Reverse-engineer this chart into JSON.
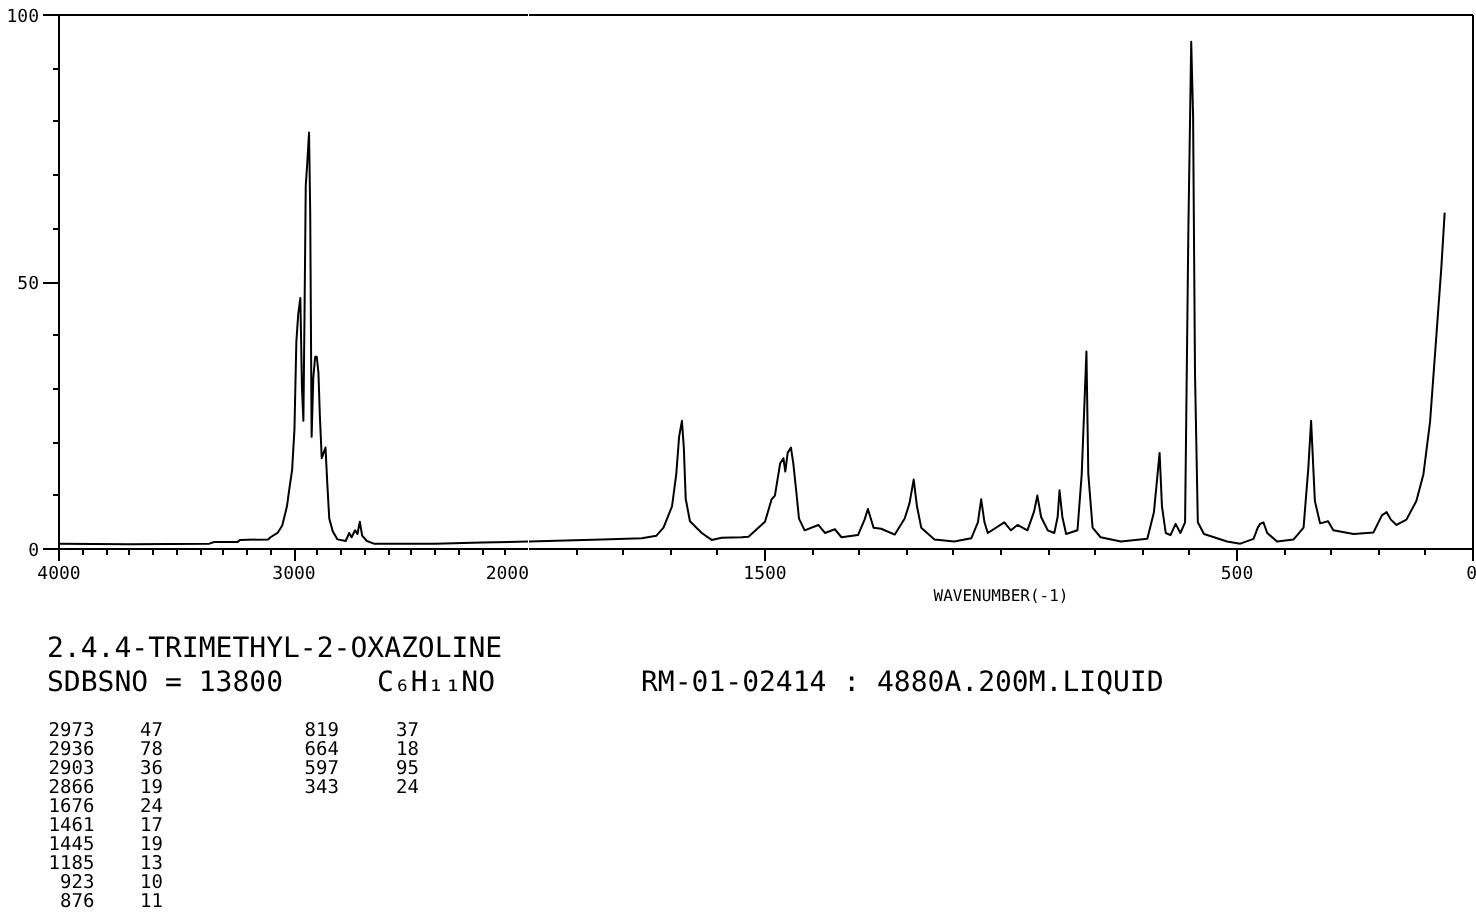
{
  "chart_data": [
    {
      "type": "line",
      "title": "2.4.4-TRIMETHYL-2-OXAZOLINE",
      "annotations": [
        "SDBSNO = 13800",
        "C₆H₁₁NO",
        "RM-01-02414 : 4880A.200M.LIQUID",
        "2973    47",
        "2936    78",
        "2903    36",
        "2866    19",
        "1676    24",
        "1461    17",
        "1445    19",
        "1185    13",
        "923    10",
        "876    11",
        "819     37",
        "664     18",
        "597     95",
        "343     24"
      ],
      "color": "#000000",
      "x": [
        4000,
        3700,
        3360,
        3340,
        3240,
        3230,
        3110,
        3100,
        3070,
        3050,
        3030,
        3020,
        3008,
        2998,
        2990,
        2982,
        2973,
        2966,
        2960,
        2955,
        2950,
        2944,
        2936,
        2931,
        2925,
        2918,
        2910,
        2903,
        2896,
        2890,
        2882,
        2874,
        2866,
        2858,
        2850,
        2835,
        2815,
        2780,
        2765,
        2755,
        2740,
        2730,
        2720,
        2710,
        2690,
        2660,
        2400,
        2200,
        2000
      ],
      "values": [
        1.0,
        0.9,
        1.0,
        1.3,
        1.3,
        1.7,
        1.8,
        2.2,
        3.0,
        4.4,
        8.0,
        11.2,
        14.8,
        22.5,
        38.8,
        44,
        47,
        30,
        24,
        45,
        68,
        72,
        78,
        63,
        21,
        32,
        36,
        36,
        33,
        25,
        17,
        18,
        19,
        12,
        5.7,
        3.3,
        1.8,
        1.5,
        3.0,
        2.2,
        3.5,
        2.8,
        5.1,
        2.5,
        1.5,
        1.0,
        1.0,
        1.2,
        1.4
      ],
      "xlim": [
        4000,
        2000
      ],
      "xticks": [
        4000,
        {
          "value": 3900,
          "label": null
        },
        {
          "value": 3800,
          "label": null
        },
        {
          "value": 3700,
          "label": null
        },
        {
          "value": 3600,
          "label": null
        },
        {
          "value": 3500,
          "label": null
        },
        {
          "value": 3400,
          "label": null
        },
        {
          "value": 3300,
          "label": null
        },
        {
          "value": 3200,
          "label": null
        },
        {
          "value": 3100,
          "label": null
        },
        3000,
        {
          "value": 2900,
          "label": null
        },
        {
          "value": 2800,
          "label": null
        },
        {
          "value": 2700,
          "label": null
        },
        {
          "value": 2600,
          "label": null
        },
        {
          "value": 2500,
          "label": null
        },
        {
          "value": 2400,
          "label": null
        },
        {
          "value": 2300,
          "label": null
        },
        {
          "value": 2200,
          "label": null
        },
        {
          "value": 2100,
          "label": null
        },
        2000
      ],
      "ylim": [
        0,
        100
      ],
      "yticks": [
        0,
        {
          "value": 10,
          "label": null
        },
        {
          "value": 20,
          "label": null
        },
        {
          "value": 30,
          "label": null
        },
        {
          "value": 40,
          "label": null
        },
        50,
        {
          "value": 60,
          "label": null
        },
        {
          "value": 70,
          "label": null
        },
        {
          "value": 80,
          "label": null
        },
        {
          "value": 90,
          "label": null
        },
        100
      ]
    },
    {
      "type": "line",
      "xlabel": "WAVENUMBER(-1)",
      "color": "#000000",
      "tick_labels": "x",
      "x": [
        2000,
        1845,
        1761,
        1730,
        1715,
        1697,
        1688,
        1682,
        1676,
        1672,
        1668,
        1659,
        1634,
        1613,
        1592,
        1550,
        1535,
        1500,
        1486,
        1479,
        1468,
        1461,
        1457,
        1452,
        1445,
        1440,
        1434,
        1428,
        1416,
        1387,
        1373,
        1352,
        1338,
        1303,
        1289,
        1282,
        1270,
        1254,
        1225,
        1204,
        1194,
        1185,
        1178,
        1169,
        1141,
        1099,
        1063,
        1049,
        1042,
        1035,
        1028,
        993,
        979,
        965,
        944,
        930,
        923,
        915,
        901,
        887,
        880,
        876,
        870,
        862,
        838,
        829,
        819,
        815,
        806,
        789,
        746,
        690,
        676,
        664,
        659,
        651,
        641,
        630,
        620,
        610,
        603,
        597,
        593,
        589,
        583,
        570,
        521,
        493,
        465,
        456,
        451,
        444,
        436,
        415,
        380,
        359,
        349,
        343,
        335,
        324,
        307,
        296,
        253,
        211,
        193,
        183,
        174,
        162,
        141,
        120,
        105,
        91,
        77,
        67,
        60
      ],
      "values": [
        1.4,
        1.8,
        2.0,
        2.5,
        4.0,
        8,
        14,
        21,
        24,
        19,
        9.4,
        5.2,
        3,
        1.7,
        2.1,
        2.2,
        2.3,
        5.1,
        9.3,
        10,
        16,
        17,
        14.5,
        18,
        19,
        16,
        11,
        5.7,
        3.5,
        4.5,
        3,
        3.7,
        2.2,
        2.6,
        5.5,
        7.5,
        4,
        3.8,
        2.7,
        5.7,
        8.5,
        13,
        8,
        4,
        1.8,
        1.4,
        2,
        5,
        9.3,
        5,
        3,
        5,
        3.5,
        4.5,
        3.5,
        7,
        10,
        6,
        3.5,
        3,
        6,
        11,
        6,
        2.8,
        3.5,
        14,
        37,
        14,
        4,
        2.2,
        1.4,
        1.9,
        6.9,
        18,
        8,
        3,
        2.6,
        4.7,
        3,
        5,
        60,
        95,
        81,
        33,
        5,
        2.8,
        1.4,
        1.0,
        1.9,
        4,
        4.7,
        5,
        3,
        1.4,
        1.8,
        4,
        15,
        24,
        9,
        4.8,
        5.2,
        3.5,
        2.8,
        3.1,
        6.3,
        6.9,
        5.5,
        4.5,
        5.5,
        9,
        14,
        23.8,
        40.7,
        52.8,
        63
      ],
      "xlim": [
        2000,
        0
      ],
      "xticks": [
        {
          "value": 1900,
          "label": null
        },
        {
          "value": 1800,
          "label": null
        },
        {
          "value": 1700,
          "label": null
        },
        {
          "value": 1600,
          "label": null
        },
        1500,
        {
          "value": 1400,
          "label": null
        },
        {
          "value": 1300,
          "label": null
        },
        {
          "value": 1200,
          "label": null
        },
        {
          "value": 1100,
          "label": null
        },
        {
          "value": 1000,
          "label": null
        },
        {
          "value": 900,
          "label": null
        },
        {
          "value": 800,
          "label": null
        },
        {
          "value": 700,
          "label": null
        },
        {
          "value": 600,
          "label": null
        },
        500,
        {
          "value": 400,
          "label": null
        },
        {
          "value": 300,
          "label": null
        },
        {
          "value": 200,
          "label": null
        },
        {
          "value": 100,
          "label": null
        },
        0
      ],
      "ylim": [
        0,
        100
      ]
    }
  ]
}
